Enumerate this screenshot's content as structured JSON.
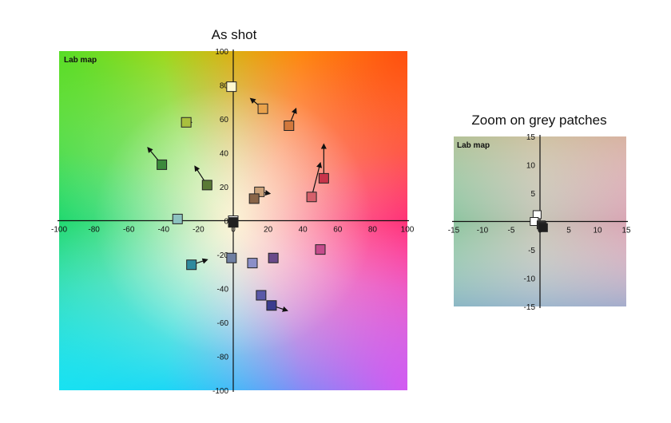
{
  "chart_data": [
    {
      "type": "scatter",
      "title": "As shot",
      "map_label": "Lab map",
      "xlim": [
        -100,
        100
      ],
      "ylim": [
        -100,
        100
      ],
      "ticks": [
        -100,
        -80,
        -60,
        -40,
        -20,
        0,
        20,
        40,
        60,
        80,
        100
      ],
      "grid": false,
      "axes_cross_at_origin": true,
      "background": "Lab a*/b* color space",
      "points": [
        {
          "x": -1,
          "y": 79,
          "color": "#fff8d0",
          "to": null
        },
        {
          "x": 17,
          "y": 66,
          "color": "#e9a24b",
          "to": [
            10,
            72
          ]
        },
        {
          "x": 32,
          "y": 56,
          "color": "#d2783c",
          "to": [
            36,
            66
          ]
        },
        {
          "x": -27,
          "y": 58,
          "color": "#a9c03e",
          "to": [
            -24,
            58
          ]
        },
        {
          "x": -41,
          "y": 33,
          "color": "#3c8a3b",
          "to": [
            -49,
            43
          ]
        },
        {
          "x": -15,
          "y": 21,
          "color": "#5a7a36",
          "to": [
            -22,
            32
          ]
        },
        {
          "x": 52,
          "y": 25,
          "color": "#c8344a",
          "to": [
            52,
            45
          ]
        },
        {
          "x": 45,
          "y": 14,
          "color": "#d5606b",
          "to": [
            50,
            34
          ]
        },
        {
          "x": 15,
          "y": 17,
          "color": "#c9a078",
          "to": [
            21,
            16
          ]
        },
        {
          "x": 12,
          "y": 13,
          "color": "#8a6548",
          "to": null
        },
        {
          "x": -32,
          "y": 1,
          "color": "#8cc2c0",
          "to": null
        },
        {
          "x": 0,
          "y": 0,
          "color": "#ffffff",
          "to": null
        },
        {
          "x": 0,
          "y": -1,
          "color": "#202020",
          "to": null
        },
        {
          "x": -24,
          "y": -26,
          "color": "#2f8a9e",
          "to": [
            -15,
            -23
          ]
        },
        {
          "x": -1,
          "y": -22,
          "color": "#6f7fa2",
          "to": null
        },
        {
          "x": 11,
          "y": -25,
          "color": "#8b8fc8",
          "to": null
        },
        {
          "x": 23,
          "y": -22,
          "color": "#6a4a8a",
          "to": null
        },
        {
          "x": 50,
          "y": -17,
          "color": "#c44c8c",
          "to": [
            52,
            -15
          ]
        },
        {
          "x": 16,
          "y": -44,
          "color": "#5a58a8",
          "to": null
        },
        {
          "x": 22,
          "y": -50,
          "color": "#3a3c8e",
          "to": [
            31,
            -53
          ]
        }
      ]
    },
    {
      "type": "scatter",
      "title": "Zoom on grey patches",
      "map_label": "Lab map",
      "xlim": [
        -15,
        15
      ],
      "ylim": [
        -15,
        15
      ],
      "ticks": [
        -15,
        -10,
        -5,
        0,
        5,
        10,
        15
      ],
      "grid": false,
      "axes_cross_at_origin": true,
      "background": "Lab a*/b* color space (low chroma)",
      "points": [
        {
          "x": -0.5,
          "y": 1.2,
          "color": "#ffffff"
        },
        {
          "x": -1.0,
          "y": 0.0,
          "color": "#ffffff"
        },
        {
          "x": 0.2,
          "y": -0.6,
          "color": "#3a3a3a"
        },
        {
          "x": 0.4,
          "y": -0.9,
          "color": "#2a2a2a"
        },
        {
          "x": 0.6,
          "y": -1.1,
          "color": "#1e1e1e"
        }
      ]
    }
  ]
}
